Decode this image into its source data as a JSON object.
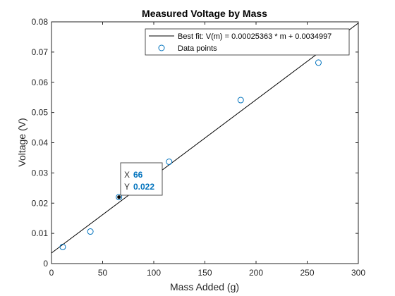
{
  "chart_data": {
    "type": "scatter",
    "title": "Measured Voltage by Mass",
    "xlabel": "Mass Added (g)",
    "ylabel": "Voltage (V)",
    "xlim": [
      0,
      300
    ],
    "ylim": [
      0,
      0.08
    ],
    "xticks": [
      0,
      50,
      100,
      150,
      200,
      250,
      300
    ],
    "xtick_labels": [
      "0",
      "50",
      "100",
      "150",
      "200",
      "250",
      "300"
    ],
    "yticks": [
      0,
      0.01,
      0.02,
      0.03,
      0.04,
      0.05,
      0.06,
      0.07,
      0.08
    ],
    "ytick_labels": [
      "0",
      "0.01",
      "0.02",
      "0.03",
      "0.04",
      "0.05",
      "0.06",
      "0.07",
      "0.08"
    ],
    "grid": false,
    "legend_position": "top-right",
    "colors": {
      "points": "#0072bd",
      "fit_line": "#000000",
      "axes": "#262626"
    },
    "series": [
      {
        "name": "Data points",
        "kind": "scatter",
        "x": [
          11,
          38,
          66,
          115,
          185,
          261
        ],
        "y": [
          0.0055,
          0.0106,
          0.022,
          0.0337,
          0.0541,
          0.0665
        ]
      },
      {
        "name": "Best fit: V(m) = 0.00025363 * m + 0.0034997",
        "kind": "line",
        "slope": 0.00025363,
        "intercept": 0.0034997
      }
    ],
    "datatip": {
      "x_key": "X",
      "x_value": "66",
      "y_key": "Y",
      "y_value": "0.022",
      "point": [
        66,
        0.022
      ]
    }
  }
}
